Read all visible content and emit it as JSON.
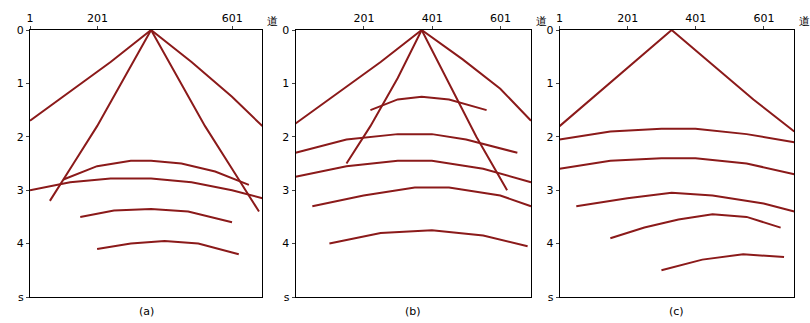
{
  "chart_data": [
    {
      "type": "line",
      "label": "(a)",
      "x_unit": "道",
      "grid": false,
      "xlim": [
        1,
        690
      ],
      "xticks": [
        1,
        201,
        601
      ],
      "ylim": [
        5,
        0
      ],
      "yticks": [
        0,
        1,
        2,
        3,
        4,
        {
          "value": 5,
          "label": "s"
        }
      ],
      "series": [
        {
          "color": "#8b1a1a",
          "x": [
            1,
            120,
            240,
            360,
            480,
            600,
            690
          ],
          "values": [
            1.7,
            1.15,
            0.6,
            0.0,
            0.6,
            1.25,
            1.8
          ]
        },
        {
          "color": "#8b1a1a",
          "x": [
            360,
            280,
            200,
            130,
            60
          ],
          "values": [
            0.0,
            0.9,
            1.8,
            2.5,
            3.2
          ]
        },
        {
          "color": "#8b1a1a",
          "x": [
            360,
            440,
            520,
            600,
            680
          ],
          "values": [
            0.0,
            0.9,
            1.8,
            2.6,
            3.4
          ]
        },
        {
          "color": "#8b1a1a",
          "x": [
            100,
            200,
            300,
            360,
            450,
            550,
            650
          ],
          "values": [
            2.8,
            2.55,
            2.45,
            2.45,
            2.5,
            2.65,
            2.9
          ]
        },
        {
          "color": "#8b1a1a",
          "x": [
            1,
            120,
            240,
            360,
            480,
            600,
            690
          ],
          "values": [
            3.0,
            2.85,
            2.78,
            2.78,
            2.85,
            3.0,
            3.15
          ]
        },
        {
          "color": "#8b1a1a",
          "x": [
            150,
            250,
            360,
            470,
            600
          ],
          "values": [
            3.5,
            3.38,
            3.35,
            3.4,
            3.6
          ]
        },
        {
          "color": "#8b1a1a",
          "x": [
            200,
            300,
            400,
            500,
            620
          ],
          "values": [
            4.1,
            4.0,
            3.95,
            4.0,
            4.2
          ]
        }
      ]
    },
    {
      "type": "line",
      "label": "(b)",
      "x_unit": "道",
      "grid": false,
      "xlim": [
        1,
        690
      ],
      "xticks": [
        201,
        401,
        601
      ],
      "ylim": [
        5,
        0
      ],
      "yticks": [
        0,
        1,
        2,
        3,
        4,
        {
          "value": 5,
          "label": "s"
        }
      ],
      "series": [
        {
          "color": "#8b1a1a",
          "x": [
            1,
            120,
            250,
            370,
            490,
            600,
            690
          ],
          "values": [
            1.75,
            1.2,
            0.6,
            0.0,
            0.55,
            1.1,
            1.7
          ]
        },
        {
          "color": "#8b1a1a",
          "x": [
            370,
            450,
            530,
            620
          ],
          "values": [
            0.0,
            1.0,
            2.0,
            3.0
          ]
        },
        {
          "color": "#8b1a1a",
          "x": [
            370,
            300,
            220,
            150
          ],
          "values": [
            0.0,
            0.9,
            1.8,
            2.5
          ]
        },
        {
          "color": "#8b1a1a",
          "x": [
            220,
            300,
            370,
            450,
            560
          ],
          "values": [
            1.5,
            1.3,
            1.25,
            1.3,
            1.5
          ]
        },
        {
          "color": "#8b1a1a",
          "x": [
            1,
            150,
            300,
            400,
            500,
            650
          ],
          "values": [
            2.3,
            2.05,
            1.95,
            1.95,
            2.05,
            2.3
          ]
        },
        {
          "color": "#8b1a1a",
          "x": [
            1,
            150,
            300,
            400,
            550,
            690
          ],
          "values": [
            2.75,
            2.55,
            2.45,
            2.45,
            2.6,
            2.85
          ]
        },
        {
          "color": "#8b1a1a",
          "x": [
            50,
            200,
            350,
            450,
            600,
            690
          ],
          "values": [
            3.3,
            3.1,
            2.95,
            2.95,
            3.1,
            3.3
          ]
        },
        {
          "color": "#8b1a1a",
          "x": [
            100,
            250,
            400,
            550,
            680
          ],
          "values": [
            4.0,
            3.8,
            3.75,
            3.85,
            4.05
          ]
        }
      ]
    },
    {
      "type": "line",
      "label": "(c)",
      "x_unit": "道",
      "grid": false,
      "xlim": [
        1,
        690
      ],
      "xticks": [
        1,
        201,
        401,
        601
      ],
      "ylim": [
        5,
        0
      ],
      "yticks": [
        0,
        1,
        2,
        3,
        4,
        {
          "value": 5,
          "label": "s"
        }
      ],
      "series": [
        {
          "color": "#8b1a1a",
          "x": [
            1,
            110,
            220,
            330,
            450,
            570,
            690
          ],
          "values": [
            1.8,
            1.2,
            0.6,
            0.0,
            0.65,
            1.3,
            1.9
          ]
        },
        {
          "color": "#8b1a1a",
          "x": [
            1,
            150,
            300,
            400,
            550,
            690
          ],
          "values": [
            2.05,
            1.9,
            1.85,
            1.85,
            1.95,
            2.1
          ]
        },
        {
          "color": "#8b1a1a",
          "x": [
            1,
            150,
            300,
            400,
            550,
            690
          ],
          "values": [
            2.6,
            2.45,
            2.4,
            2.4,
            2.5,
            2.7
          ]
        },
        {
          "color": "#8b1a1a",
          "x": [
            50,
            200,
            330,
            450,
            600,
            690
          ],
          "values": [
            3.3,
            3.15,
            3.05,
            3.1,
            3.25,
            3.4
          ]
        },
        {
          "color": "#8b1a1a",
          "x": [
            150,
            250,
            350,
            450,
            550,
            650
          ],
          "values": [
            3.9,
            3.7,
            3.55,
            3.45,
            3.5,
            3.7
          ]
        },
        {
          "color": "#8b1a1a",
          "x": [
            300,
            420,
            540,
            660
          ],
          "values": [
            4.5,
            4.3,
            4.2,
            4.25
          ]
        }
      ]
    }
  ]
}
